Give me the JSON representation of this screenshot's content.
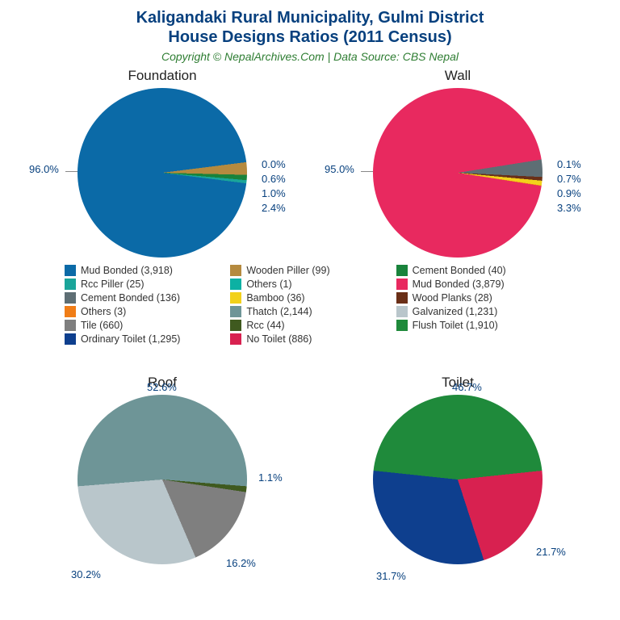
{
  "title": {
    "line1": "Kaligandaki Rural Municipality, Gulmi District",
    "line2": "House Designs Ratios (2011 Census)"
  },
  "subtitle": "Copyright © NepalArchives.Com | Data Source: CBS Nepal",
  "title_color": "#07407e",
  "subtitle_color": "#2e7d32",
  "background_color": "#ffffff",
  "label_color": "#07407e",
  "title_fontsize": 20,
  "subtitle_fontsize": 14,
  "chart_title_fontsize": 17,
  "label_fontsize": 13,
  "legend_fontsize": 12.5,
  "pie_diameter": 210,
  "charts": {
    "foundation": {
      "title": "Foundation",
      "type": "pie",
      "slices": [
        {
          "label": "Mud Bonded",
          "value": 3918,
          "pct": 96.0,
          "color": "#0b6aa7"
        },
        {
          "label": "Wooden Piller",
          "value": 99,
          "pct": 2.4,
          "color": "#b58a3f"
        },
        {
          "label": "Cement Bonded",
          "value": 40,
          "pct": 1.0,
          "color": "#19833b"
        },
        {
          "label": "Rcc Piller",
          "value": 25,
          "pct": 0.6,
          "color": "#1aa59a"
        },
        {
          "label": "Others",
          "value": 1,
          "pct": 0.0,
          "color": "#0cb1a3"
        }
      ],
      "shown_labels": [
        "96.0%",
        "0.0%",
        "0.6%",
        "1.0%",
        "2.4%"
      ]
    },
    "wall": {
      "title": "Wall",
      "type": "pie",
      "slices": [
        {
          "label": "Mud Bonded",
          "value": 3879,
          "pct": 95.0,
          "color": "#e8295f"
        },
        {
          "label": "Cement Bonded",
          "value": 136,
          "pct": 3.3,
          "color": "#5e6e74"
        },
        {
          "label": "Wood Planks",
          "value": 28,
          "pct": 0.7,
          "color": "#6a2f17"
        },
        {
          "label": "Bamboo",
          "value": 36,
          "pct": 0.9,
          "color": "#f2d11b"
        },
        {
          "label": "Others",
          "value": 3,
          "pct": 0.1,
          "color": "#f07d17"
        }
      ],
      "shown_labels": [
        "95.0%",
        "0.1%",
        "0.7%",
        "0.9%",
        "3.3%"
      ]
    },
    "roof": {
      "title": "Roof",
      "type": "pie",
      "slices": [
        {
          "label": "Thatch",
          "value": 2144,
          "pct": 52.6,
          "color": "#6e9597"
        },
        {
          "label": "Galvanized",
          "value": 1231,
          "pct": 30.2,
          "color": "#b9c6cb"
        },
        {
          "label": "Tile",
          "value": 660,
          "pct": 16.2,
          "color": "#7f7f7f"
        },
        {
          "label": "Rcc",
          "value": 44,
          "pct": 1.1,
          "color": "#3f5a1f"
        }
      ],
      "shown_labels": [
        "52.6%",
        "1.1%",
        "16.2%",
        "30.2%"
      ]
    },
    "toilet": {
      "title": "Toilet",
      "type": "pie",
      "slices": [
        {
          "label": "Flush Toilet",
          "value": 1910,
          "pct": 46.7,
          "color": "#1f8a3b"
        },
        {
          "label": "Ordinary Toilet",
          "value": 1295,
          "pct": 31.7,
          "color": "#0e3f8e"
        },
        {
          "label": "No Toilet",
          "value": 886,
          "pct": 21.7,
          "color": "#d82150"
        }
      ],
      "shown_labels": [
        "46.7%",
        "31.7%",
        "21.7%"
      ]
    }
  },
  "legend": [
    {
      "label": "Mud Bonded (3,918)",
      "color": "#0b6aa7"
    },
    {
      "label": "Wooden Piller (99)",
      "color": "#b58a3f"
    },
    {
      "label": "Cement Bonded (40)",
      "color": "#19833b"
    },
    {
      "label": "Rcc Piller (25)",
      "color": "#1aa59a"
    },
    {
      "label": "Others (1)",
      "color": "#0cb1a3"
    },
    {
      "label": "Mud Bonded (3,879)",
      "color": "#e8295f"
    },
    {
      "label": "Cement Bonded (136)",
      "color": "#5e6e74"
    },
    {
      "label": "Bamboo (36)",
      "color": "#f2d11b"
    },
    {
      "label": "Wood Planks (28)",
      "color": "#6a2f17"
    },
    {
      "label": "Others (3)",
      "color": "#f07d17"
    },
    {
      "label": "Thatch (2,144)",
      "color": "#6e9597"
    },
    {
      "label": "Galvanized (1,231)",
      "color": "#b9c6cb"
    },
    {
      "label": "Tile (660)",
      "color": "#7f7f7f"
    },
    {
      "label": "Rcc (44)",
      "color": "#3f5a1f"
    },
    {
      "label": "Flush Toilet (1,910)",
      "color": "#1f8a3b"
    },
    {
      "label": "Ordinary Toilet (1,295)",
      "color": "#0e3f8e"
    },
    {
      "label": "No Toilet (886)",
      "color": "#d82150"
    }
  ],
  "legend_order": [
    0,
    1,
    2,
    3,
    4,
    5,
    6,
    7,
    8,
    9,
    10,
    11,
    12,
    13,
    14,
    15,
    16
  ],
  "legend_grid_column_order": [
    0,
    1,
    2,
    3,
    4,
    5,
    6,
    7,
    8,
    9,
    10,
    11,
    12,
    13,
    14,
    15,
    16
  ]
}
